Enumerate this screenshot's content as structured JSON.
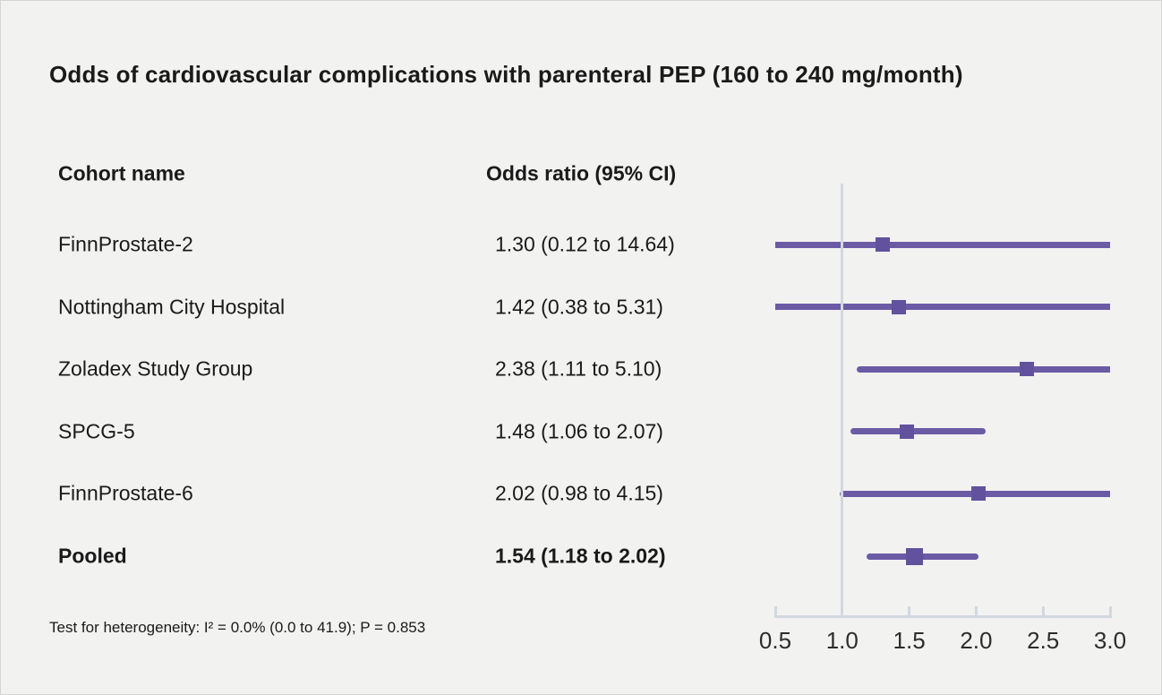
{
  "title": "Odds of cardiovascular complications with parenteral PEP (160 to 240 mg/month)",
  "columns": {
    "cohort_header": "Cohort name",
    "or_header": "Odds ratio (95% CI)"
  },
  "footnote": "Test for heterogeneity: I² = 0.0% (0.0 to 41.9); P = 0.853",
  "colors": {
    "background": "#f2f2f1",
    "text": "#1a1a1a",
    "ci_line": "#6b5ba5",
    "marker": "#62519d",
    "axis": "#d3d7df"
  },
  "chart_data": {
    "type": "forest",
    "title": "Odds of cardiovascular complications with parenteral PEP (160 to 240 mg/month)",
    "xlabel": "",
    "ylabel": "",
    "legend": "none",
    "grid": "off",
    "axis": {
      "min": 0.5,
      "max": 3.0,
      "ticks": [
        0.5,
        1.0,
        1.5,
        2.0,
        2.5,
        3.0
      ],
      "tick_labels": [
        "0.5",
        "1.0",
        "1.5",
        "2.0",
        "2.5",
        "3.0"
      ],
      "reference": 1.0
    },
    "rows": [
      {
        "cohort": "FinnProstate-2",
        "or_label": "1.30 (0.12 to 14.64)",
        "or": 1.3,
        "ci_low": 0.12,
        "ci_high": 14.64,
        "pooled": false
      },
      {
        "cohort": "Nottingham City Hospital",
        "or_label": "1.42 (0.38 to 5.31)",
        "or": 1.42,
        "ci_low": 0.38,
        "ci_high": 5.31,
        "pooled": false
      },
      {
        "cohort": "Zoladex Study Group",
        "or_label": "2.38 (1.11 to 5.10)",
        "or": 2.38,
        "ci_low": 1.11,
        "ci_high": 5.1,
        "pooled": false
      },
      {
        "cohort": "SPCG-5",
        "or_label": "1.48 (1.06 to 2.07)",
        "or": 1.48,
        "ci_low": 1.06,
        "ci_high": 2.07,
        "pooled": false
      },
      {
        "cohort": "FinnProstate-6",
        "or_label": "2.02 (0.98 to 4.15)",
        "or": 2.02,
        "ci_low": 0.98,
        "ci_high": 4.15,
        "pooled": false
      },
      {
        "cohort": "Pooled",
        "or_label": "1.54 (1.18 to 2.02)",
        "or": 1.54,
        "ci_low": 1.18,
        "ci_high": 2.02,
        "pooled": true
      }
    ]
  }
}
